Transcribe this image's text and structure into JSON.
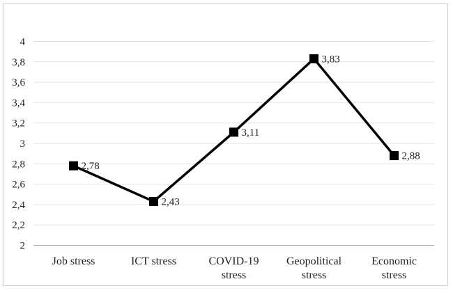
{
  "chart_data": {
    "type": "line",
    "title": "",
    "xlabel": "",
    "ylabel": "",
    "categories": [
      "Job stress",
      "ICT stress",
      "COVID-19 stress",
      "Geopolitical stress",
      "Economic stress"
    ],
    "category_label_lines": [
      [
        "Job stress"
      ],
      [
        "ICT stress"
      ],
      [
        "COVID-19",
        "stress"
      ],
      [
        "Geopolitical",
        "stress"
      ],
      [
        "Economic",
        "stress"
      ]
    ],
    "values": [
      2.78,
      2.43,
      3.11,
      3.83,
      2.88
    ],
    "value_labels": [
      "2,78",
      "2,43",
      "3,11",
      "3,83",
      "2,88"
    ],
    "ylim": [
      2,
      4
    ],
    "y_tick_step": 0.2,
    "y_tick_labels": [
      "2",
      "2,2",
      "2,4",
      "2,6",
      "2,8",
      "3",
      "3,2",
      "3,4",
      "3,6",
      "3,8",
      "4"
    ],
    "grid": true,
    "legend": "none",
    "marker_shape": "square",
    "decimal_separator": ",",
    "colors": {
      "line": "#000000",
      "marker": "#000000",
      "gridline": "#e2e2e2",
      "axis_line": "#aeaeae",
      "text": "#1f1f1f",
      "frame_border": "#cccccc",
      "background": "#ffffff"
    }
  }
}
